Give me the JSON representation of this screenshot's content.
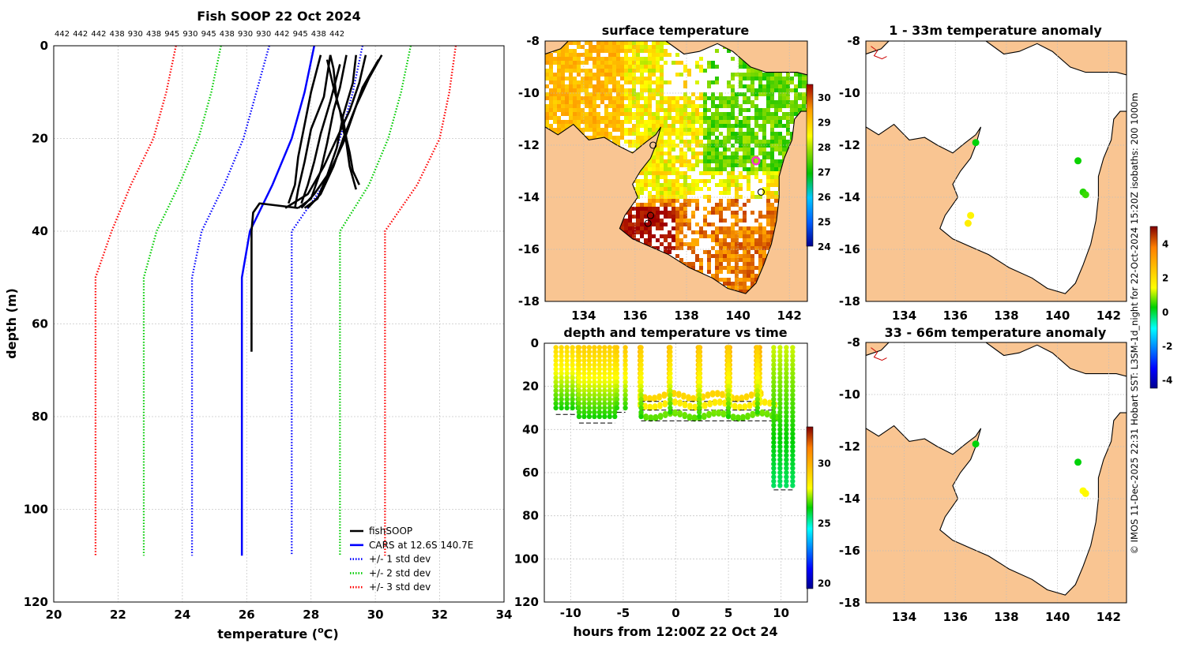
{
  "chart_data": [
    {
      "type": "line",
      "title": "Fish SOOP 22 Oct 2024",
      "top_labels": [
        "442",
        "442",
        "442",
        "438",
        "930",
        "438",
        "945",
        "930",
        "945",
        "438",
        "930",
        "930",
        "442",
        "945",
        "438",
        "442"
      ],
      "xlabel": "temperature (°C)",
      "xlabel_main": "temperature (",
      "xlabel_unit": "C)",
      "xlabel_deg": "o",
      "ylabel": "depth (m)",
      "xlim": [
        20,
        34
      ],
      "ylim": [
        0,
        120
      ],
      "xticks": [
        "20",
        "22",
        "24",
        "26",
        "28",
        "30",
        "32",
        "34"
      ],
      "yticks": [
        "0",
        "20",
        "40",
        "60",
        "80",
        "100",
        "120"
      ],
      "grid": true,
      "legend_position": "bottom-right",
      "legend": [
        "fishSOOP",
        "CARS at 12.6S 140.7E",
        "+/- 1 std dev",
        "+/- 2 std dev",
        "+/- 3 std dev"
      ],
      "series": [
        {
          "name": "CARS at 12.6S 140.7E",
          "style": "solid",
          "color": "#0000ff",
          "points": [
            [
              28.1,
              0
            ],
            [
              27.8,
              10
            ],
            [
              27.4,
              20
            ],
            [
              26.8,
              30
            ],
            [
              26.1,
              40
            ],
            [
              25.85,
              50
            ],
            [
              25.85,
              60
            ],
            [
              25.85,
              110
            ]
          ]
        },
        {
          "name": "+1 std dev",
          "style": "dotted",
          "color": "#0000ff",
          "points": [
            [
              29.6,
              0
            ],
            [
              29.3,
              10
            ],
            [
              28.9,
              20
            ],
            [
              28.4,
              30
            ],
            [
              27.4,
              40
            ],
            [
              27.4,
              50
            ],
            [
              27.4,
              60
            ],
            [
              27.4,
              110
            ]
          ]
        },
        {
          "name": "-1 std dev",
          "style": "dotted",
          "color": "#0000ff",
          "points": [
            [
              26.7,
              0
            ],
            [
              26.3,
              10
            ],
            [
              25.9,
              20
            ],
            [
              25.3,
              30
            ],
            [
              24.6,
              40
            ],
            [
              24.3,
              50
            ],
            [
              24.3,
              60
            ],
            [
              24.3,
              110
            ]
          ]
        },
        {
          "name": "+2 std dev",
          "style": "dotted",
          "color": "#00cc00",
          "points": [
            [
              31.1,
              0
            ],
            [
              30.8,
              10
            ],
            [
              30.4,
              20
            ],
            [
              29.8,
              30
            ],
            [
              28.9,
              40
            ],
            [
              28.9,
              50
            ],
            [
              28.9,
              60
            ],
            [
              28.9,
              110
            ]
          ]
        },
        {
          "name": "-2 std dev",
          "style": "dotted",
          "color": "#00cc00",
          "points": [
            [
              25.2,
              0
            ],
            [
              24.9,
              10
            ],
            [
              24.5,
              20
            ],
            [
              23.9,
              30
            ],
            [
              23.2,
              40
            ],
            [
              22.8,
              50
            ],
            [
              22.8,
              60
            ],
            [
              22.8,
              110
            ]
          ]
        },
        {
          "name": "+3 std dev",
          "style": "dotted",
          "color": "#ff0000",
          "points": [
            [
              32.5,
              0
            ],
            [
              32.3,
              10
            ],
            [
              32.0,
              20
            ],
            [
              31.3,
              30
            ],
            [
              30.3,
              40
            ],
            [
              30.3,
              50
            ],
            [
              30.3,
              60
            ],
            [
              30.3,
              110
            ]
          ]
        },
        {
          "name": "-3 std dev",
          "style": "dotted",
          "color": "#ff0000",
          "points": [
            [
              23.8,
              0
            ],
            [
              23.5,
              10
            ],
            [
              23.1,
              20
            ],
            [
              22.4,
              30
            ],
            [
              21.8,
              40
            ],
            [
              21.3,
              50
            ],
            [
              21.3,
              60
            ],
            [
              21.3,
              110
            ]
          ]
        }
      ],
      "profiles": [
        [
          [
            29.4,
            2
          ],
          [
            29.3,
            8
          ],
          [
            29.0,
            15
          ],
          [
            28.8,
            22
          ],
          [
            28.5,
            28
          ],
          [
            28.2,
            33
          ],
          [
            27.8,
            35
          ]
        ],
        [
          [
            29.1,
            2
          ],
          [
            28.9,
            9
          ],
          [
            28.7,
            14
          ],
          [
            28.5,
            21
          ],
          [
            28.3,
            27
          ],
          [
            28.0,
            33
          ],
          [
            27.6,
            35
          ]
        ],
        [
          [
            30.1,
            3
          ],
          [
            29.6,
            9
          ],
          [
            29.3,
            15
          ],
          [
            29.0,
            21
          ],
          [
            28.6,
            27
          ],
          [
            28.1,
            32
          ],
          [
            27.7,
            35
          ]
        ],
        [
          [
            28.3,
            2
          ],
          [
            28.0,
            10
          ],
          [
            27.8,
            17
          ],
          [
            27.6,
            24
          ],
          [
            27.5,
            30
          ],
          [
            27.3,
            34
          ]
        ],
        [
          [
            28.6,
            2
          ],
          [
            28.4,
            11
          ],
          [
            28.0,
            18
          ],
          [
            27.8,
            25
          ],
          [
            27.6,
            31
          ],
          [
            27.5,
            35
          ]
        ],
        [
          [
            29.7,
            2
          ],
          [
            29.5,
            8
          ],
          [
            29.2,
            14
          ],
          [
            28.8,
            20
          ],
          [
            28.4,
            26
          ],
          [
            27.9,
            32
          ],
          [
            27.2,
            35
          ]
        ],
        [
          [
            30.2,
            2
          ],
          [
            29.8,
            7
          ],
          [
            29.4,
            13
          ],
          [
            29.0,
            20
          ],
          [
            28.7,
            26
          ],
          [
            28.3,
            32
          ],
          [
            27.9,
            35
          ]
        ],
        [
          [
            28.9,
            4
          ],
          [
            28.6,
            12
          ],
          [
            28.3,
            19
          ],
          [
            28.1,
            25
          ],
          [
            27.9,
            30
          ],
          [
            27.7,
            34
          ]
        ],
        [
          [
            29.5,
            30
          ],
          [
            29.3,
            27
          ],
          [
            29.2,
            23
          ],
          [
            29.1,
            20
          ],
          [
            29.0,
            16
          ],
          [
            28.8,
            12
          ],
          [
            28.7,
            5
          ],
          [
            28.6,
            2
          ]
        ],
        [
          [
            29.4,
            31
          ],
          [
            29.2,
            26
          ],
          [
            29.1,
            21
          ],
          [
            29.0,
            18
          ],
          [
            28.9,
            14
          ],
          [
            28.7,
            9
          ],
          [
            28.5,
            3
          ]
        ],
        [
          [
            27.6,
            35
          ],
          [
            26.4,
            34
          ],
          [
            26.2,
            36
          ],
          [
            26.15,
            40
          ],
          [
            26.15,
            50
          ],
          [
            26.15,
            60
          ],
          [
            26.15,
            66
          ]
        ]
      ]
    },
    {
      "type": "heatmap",
      "title": "surface temperature",
      "xlim": [
        132.5,
        142.7
      ],
      "ylim": [
        -18,
        -8
      ],
      "xticks": [
        "134",
        "136",
        "138",
        "140",
        "142"
      ],
      "yticks": [
        "-8",
        "-10",
        "-12",
        "-14",
        "-16",
        "-18"
      ],
      "colorbar_ticks": [
        "24",
        "25",
        "26",
        "27",
        "28",
        "29",
        "30"
      ],
      "colorbar_range": [
        24,
        30.5
      ],
      "marker": {
        "lon": 140.7,
        "lat": -12.6,
        "color": "#ff33cc"
      },
      "station_circles": [
        [
          136.7,
          -12.0
        ],
        [
          140.9,
          -13.8
        ],
        [
          136.6,
          -14.7
        ],
        [
          136.5,
          -15.0
        ]
      ]
    },
    {
      "type": "scatter",
      "title": "1 - 33m temperature anomaly",
      "xlim": [
        132.5,
        142.7
      ],
      "ylim": [
        -18,
        -8
      ],
      "xticks": [
        "134",
        "136",
        "138",
        "140",
        "142"
      ],
      "yticks": [
        "-8",
        "-10",
        "-12",
        "-14",
        "-16",
        "-18"
      ],
      "points": [
        {
          "lon": 136.8,
          "lat": -11.9,
          "value": 0.2
        },
        {
          "lon": 140.8,
          "lat": -12.6,
          "value": 0.3
        },
        {
          "lon": 141.0,
          "lat": -13.8,
          "value": 0.4
        },
        {
          "lon": 141.1,
          "lat": -13.9,
          "value": 0.5
        },
        {
          "lon": 136.6,
          "lat": -14.7,
          "value": 1.6
        },
        {
          "lon": 136.5,
          "lat": -15.0,
          "value": 1.7
        }
      ]
    },
    {
      "type": "scatter",
      "title": "depth and temperature vs time",
      "xlabel": "hours from 12:00Z 22 Oct 24",
      "xlim": [
        -12.5,
        12.5
      ],
      "ylim": [
        0,
        120
      ],
      "xticks": [
        "-10",
        "-5",
        "0",
        "5",
        "10"
      ],
      "yticks": [
        "0",
        "20",
        "40",
        "60",
        "80",
        "100",
        "120"
      ],
      "colorbar_ticks": [
        "20",
        "25",
        "30"
      ],
      "colorbar_range": [
        19.5,
        33
      ],
      "casts": [
        {
          "t0": -11.4,
          "t1": -9.3,
          "depth": 31,
          "temp_surface": 29.0,
          "temp_bottom": 26.3
        },
        {
          "t0": -9.2,
          "t1": -5.8,
          "depth": 35,
          "temp_surface": 29.3,
          "temp_bottom": 26.3
        },
        {
          "t0": -5.6,
          "t1": -4.8,
          "depth": 30,
          "temp_surface": 29.5,
          "temp_bottom": 26.5
        },
        {
          "t0": -3.4,
          "t1": 8.1,
          "depth": 25,
          "temp_surface": 29.8,
          "temp_bottom": 28.4
        },
        {
          "t0": -3.4,
          "t1": 9.4,
          "depth": 29,
          "temp_surface": 30.1,
          "temp_bottom": 27.6
        },
        {
          "t0": -3.3,
          "t1": 9.6,
          "depth": 34,
          "temp_surface": 29.4,
          "temp_bottom": 26.4
        },
        {
          "t0": 9.3,
          "t1": 11.1,
          "depth": 66,
          "temp_surface": 27.6,
          "temp_bottom": 25.6
        }
      ]
    },
    {
      "type": "scatter",
      "title": "33 - 66m temperature anomaly",
      "xlim": [
        132.5,
        142.7
      ],
      "ylim": [
        -18,
        -8
      ],
      "xticks": [
        "134",
        "136",
        "138",
        "140",
        "142"
      ],
      "yticks": [
        "-8",
        "-10",
        "-12",
        "-14",
        "-16",
        "-18"
      ],
      "anomaly_colorbar_ticks": [
        "4",
        "2",
        "0",
        "-2",
        "-4"
      ],
      "anomaly_range": [
        -4.5,
        5
      ],
      "points": [
        {
          "lon": 136.8,
          "lat": -11.9,
          "value": 0.2
        },
        {
          "lon": 140.8,
          "lat": -12.6,
          "value": 0.2
        },
        {
          "lon": 141.0,
          "lat": -13.7,
          "value": 1.4
        },
        {
          "lon": 141.1,
          "lat": -13.8,
          "value": 1.5
        }
      ]
    }
  ],
  "side_text": "© IMOS 11-Dec-2025 22:31 Hobart SST: L3SM-1d_night for 22-Oct-2024 15:20Z isobaths: 200  1000m",
  "colors": {
    "land": "#f9c592",
    "coast": "#000000",
    "water": "#ffffff",
    "grid": "#c8c8c8"
  }
}
